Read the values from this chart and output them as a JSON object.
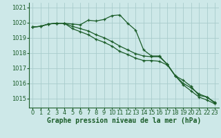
{
  "title": "Graphe pression niveau de la mer (hPa)",
  "background_color": "#cde8e8",
  "grid_color": "#a8cccc",
  "line_color": "#1a5c28",
  "series": [
    [
      1019.7,
      1019.75,
      1019.9,
      1019.95,
      1019.95,
      1019.9,
      1019.85,
      1020.15,
      1020.1,
      1020.2,
      1020.45,
      1020.5,
      1019.95,
      1019.5,
      1018.2,
      1017.8,
      1017.8,
      1017.25,
      1016.5,
      1016.2,
      1015.8,
      1015.2,
      1015.1,
      1014.7
    ],
    [
      1019.7,
      1019.75,
      1019.9,
      1019.95,
      1019.95,
      1019.75,
      1019.6,
      1019.45,
      1019.2,
      1019.0,
      1018.75,
      1018.45,
      1018.2,
      1017.95,
      1017.8,
      1017.75,
      1017.75,
      1017.25,
      1016.5,
      1016.0,
      1015.7,
      1015.3,
      1015.1,
      1014.75
    ],
    [
      1019.7,
      1019.75,
      1019.9,
      1019.95,
      1019.95,
      1019.6,
      1019.4,
      1019.2,
      1018.9,
      1018.7,
      1018.45,
      1018.1,
      1017.9,
      1017.65,
      1017.5,
      1017.5,
      1017.45,
      1017.2,
      1016.5,
      1015.9,
      1015.5,
      1015.1,
      1014.9,
      1014.65
    ]
  ],
  "x_ticks": [
    0,
    1,
    2,
    3,
    4,
    5,
    6,
    7,
    8,
    9,
    10,
    11,
    12,
    13,
    14,
    15,
    16,
    17,
    18,
    19,
    20,
    21,
    22,
    23
  ],
  "x_tick_labels": [
    "0",
    "1",
    "2",
    "3",
    "4",
    "5",
    "6",
    "7",
    "8",
    "9",
    "10",
    "11",
    "12",
    "13",
    "14",
    "15",
    "16",
    "17",
    "18",
    "19",
    "20",
    "21",
    "22",
    "23"
  ],
  "ylim": [
    1014.4,
    1021.3
  ],
  "yticks": [
    1015,
    1016,
    1017,
    1018,
    1019,
    1020,
    1021
  ],
  "tick_fontsize": 6.0,
  "title_fontsize": 7.0
}
